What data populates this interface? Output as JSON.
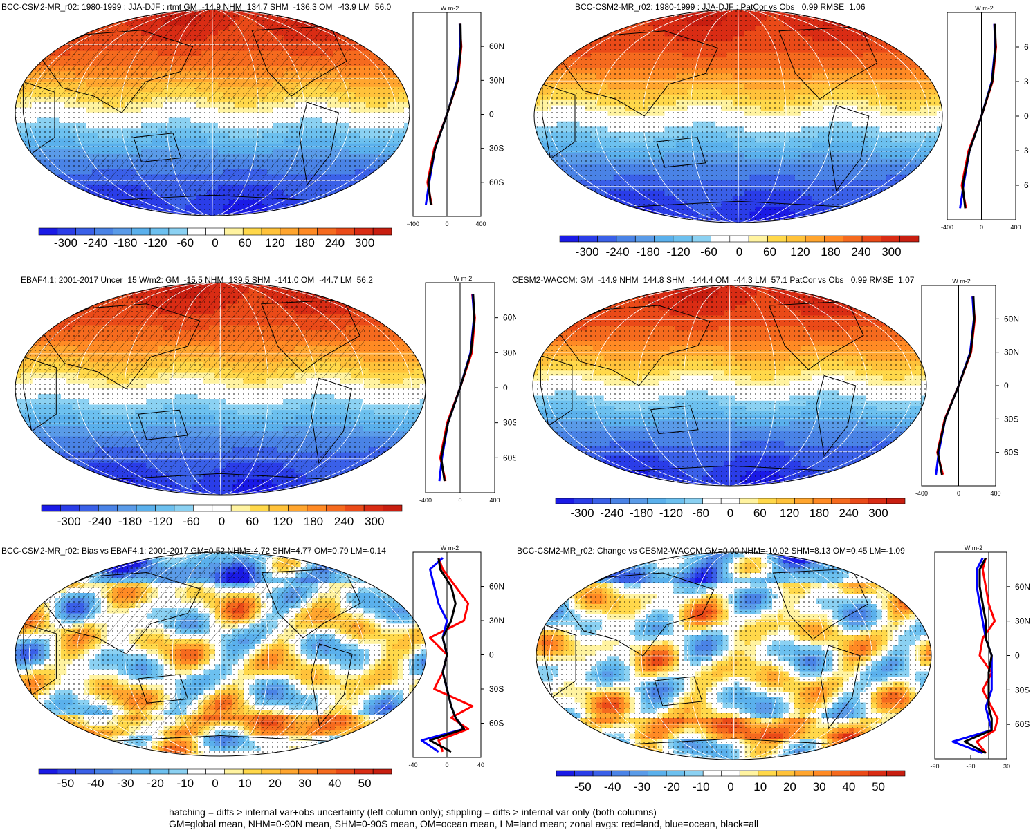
{
  "figure": {
    "footer_line1": "hatching = diffs > internal var+obs uncertainty (left column only); stippling = diffs > internal var only (both columns)",
    "footer_line2": "GM=global mean, NHM=0-90N mean, SHM=0-90S mean, OM=ocean mean, LM=land mean; zonal avgs: red=land, blue=ocean, black=all"
  },
  "colors": {
    "land_line": "#ff0000",
    "ocean_line": "#0000ff",
    "all_line": "#000000",
    "colormap": [
      "#1a1ae6",
      "#2a3de8",
      "#3a60e8",
      "#4a83e6",
      "#5a9be8",
      "#5ab0ec",
      "#6cc0ef",
      "#8bd1f2",
      "#ffffff",
      "#ffffff",
      "#fff3a0",
      "#ffd84a",
      "#ffc23a",
      "#ffa52e",
      "#ff8a24",
      "#f56a1e",
      "#ea4a18",
      "#d92c14",
      "#c81e10"
    ]
  },
  "chart_data": [
    {
      "type": "heatmap",
      "title": "BCC-CSM2-MR_r02: 1980-1999 : JJA-DJF : rtmt GM=-14.9 NHM=134.7 SHM=-136.3 OM=-43.9 LM=56.0",
      "colorbar_labels": [
        "-300",
        "-240",
        "-180",
        "-120",
        "-60",
        "0",
        "60",
        "120",
        "180",
        "240",
        "300"
      ],
      "units": "W m-2",
      "zonal_x_ticks": [
        "-400",
        "0",
        "400"
      ],
      "zonal_lat_ticks": [
        "60N",
        "30N",
        "0",
        "30S",
        "60S"
      ],
      "zonal_xlim": [
        -400,
        400
      ],
      "series": [
        {
          "color": "red",
          "lat": [
            80,
            60,
            30,
            0,
            -30,
            -60,
            -80
          ],
          "values": [
            150,
            170,
            130,
            0,
            -150,
            -230,
            -180
          ]
        },
        {
          "color": "blue",
          "lat": [
            80,
            60,
            30,
            0,
            -30,
            -60,
            -80
          ],
          "values": [
            150,
            160,
            120,
            0,
            -140,
            -210,
            -250
          ]
        },
        {
          "color": "black",
          "lat": [
            80,
            60,
            30,
            0,
            -30,
            -60,
            -80
          ],
          "values": [
            160,
            165,
            125,
            0,
            -140,
            -220,
            -190
          ]
        }
      ]
    },
    {
      "type": "heatmap",
      "title": "BCC-CSM2-MR_r02: 1980-1999 : JJA-DJF : PatCor vs Obs =0.99 RMSE=1.06",
      "colorbar_labels": [
        "-300",
        "-240",
        "-180",
        "-120",
        "-60",
        "0",
        "60",
        "120",
        "180",
        "240",
        "300"
      ],
      "units": "W m-2",
      "zonal_x_ticks": [
        "-400",
        "0",
        "400"
      ],
      "zonal_lat_ticks": [
        "6",
        "3",
        "0",
        "3",
        "6"
      ],
      "zonal_xlim": [
        -400,
        400
      ],
      "series": [
        {
          "color": "red",
          "lat": [
            80,
            60,
            30,
            0,
            -30,
            -60,
            -80
          ],
          "values": [
            150,
            170,
            130,
            0,
            -150,
            -230,
            -180
          ]
        },
        {
          "color": "blue",
          "lat": [
            80,
            60,
            30,
            0,
            -30,
            -60,
            -80
          ],
          "values": [
            150,
            160,
            120,
            0,
            -140,
            -210,
            -250
          ]
        },
        {
          "color": "black",
          "lat": [
            80,
            60,
            30,
            0,
            -30,
            -60,
            -80
          ],
          "values": [
            160,
            165,
            125,
            0,
            -140,
            -220,
            -190
          ]
        }
      ]
    },
    {
      "type": "heatmap",
      "title": "EBAF4.1: 2001-2017 Uncer=15 W/m2: GM=-15.5 NHM=139.5 SHM=-141.0 OM=-44.7 LM=56.2",
      "colorbar_labels": [
        "-300",
        "-240",
        "-180",
        "-120",
        "-60",
        "0",
        "60",
        "120",
        "180",
        "240",
        "300"
      ],
      "units": "W m-2",
      "zonal_x_ticks": [
        "-400",
        "0",
        "400"
      ],
      "zonal_lat_ticks": [
        "60N",
        "30N",
        "0",
        "30S",
        "60S"
      ],
      "zonal_xlim": [
        -400,
        400
      ],
      "series": [
        {
          "color": "red",
          "lat": [
            80,
            60,
            30,
            0,
            -30,
            -60,
            -80
          ],
          "values": [
            140,
            170,
            135,
            0,
            -150,
            -230,
            -170
          ]
        },
        {
          "color": "blue",
          "lat": [
            80,
            60,
            30,
            0,
            -30,
            -60,
            -80
          ],
          "values": [
            145,
            160,
            120,
            0,
            -140,
            -210,
            -240
          ]
        },
        {
          "color": "black",
          "lat": [
            80,
            60,
            30,
            0,
            -30,
            -60,
            -80
          ],
          "values": [
            150,
            165,
            125,
            0,
            -140,
            -220,
            -180
          ]
        }
      ]
    },
    {
      "type": "heatmap",
      "title": "CESM2-WACCM: GM=-14.9 NHM=144.8 SHM=-144.4 OM=-44.3 LM=57.1 PatCor vs Obs =0.99 RMSE=1.07",
      "colorbar_labels": [
        "-300",
        "-240",
        "-180",
        "-120",
        "-60",
        "0",
        "60",
        "120",
        "180",
        "240",
        "300"
      ],
      "units": "W m-2",
      "zonal_x_ticks": [
        "-400",
        "0",
        "400"
      ],
      "zonal_lat_ticks": [
        "60N",
        "30N",
        "0",
        "30S",
        "60S"
      ],
      "zonal_xlim": [
        -400,
        400
      ],
      "series": [
        {
          "color": "red",
          "lat": [
            80,
            60,
            30,
            0,
            -30,
            -60,
            -80
          ],
          "values": [
            150,
            175,
            135,
            0,
            -150,
            -230,
            -170
          ]
        },
        {
          "color": "blue",
          "lat": [
            80,
            60,
            30,
            0,
            -30,
            -60,
            -80
          ],
          "values": [
            150,
            165,
            125,
            0,
            -145,
            -215,
            -245
          ]
        },
        {
          "color": "black",
          "lat": [
            80,
            60,
            30,
            0,
            -30,
            -60,
            -80
          ],
          "values": [
            160,
            170,
            130,
            0,
            -145,
            -225,
            -180
          ]
        }
      ]
    },
    {
      "type": "heatmap",
      "title": "BCC-CSM2-MR_r02: Bias vs EBAF4.1: 2001-2017 GM=0.52 NHM=-4.72 SHM=4.77 OM=0.79 LM=-0.14",
      "colorbar_labels": [
        "-50",
        "-40",
        "-30",
        "-20",
        "-10",
        "0",
        "10",
        "20",
        "30",
        "40",
        "50"
      ],
      "units": "W m-2",
      "zonal_x_ticks": [
        "-40",
        "0",
        "40"
      ],
      "zonal_lat_ticks": [
        "60N",
        "30N",
        "0",
        "30S",
        "60S"
      ],
      "zonal_xlim": [
        -40,
        40
      ],
      "series": [
        {
          "color": "red",
          "lat": [
            85,
            75,
            60,
            45,
            30,
            15,
            0,
            -15,
            -30,
            -45,
            -55,
            -65,
            -75,
            -85
          ],
          "values": [
            -10,
            -5,
            10,
            25,
            20,
            -20,
            0,
            -5,
            -15,
            30,
            5,
            25,
            -10,
            -5
          ]
        },
        {
          "color": "blue",
          "lat": [
            85,
            75,
            60,
            45,
            30,
            15,
            0,
            -15,
            -30,
            -45,
            -55,
            -65,
            -75,
            -85
          ],
          "values": [
            -5,
            -20,
            -15,
            -10,
            0,
            -5,
            0,
            -5,
            0,
            5,
            10,
            20,
            -30,
            -10
          ]
        },
        {
          "color": "black",
          "lat": [
            85,
            75,
            60,
            45,
            30,
            15,
            0,
            -15,
            -30,
            -45,
            -55,
            -65,
            -75,
            -85
          ],
          "values": [
            -10,
            -8,
            5,
            10,
            5,
            -5,
            0,
            -5,
            0,
            5,
            10,
            20,
            -20,
            5
          ]
        }
      ]
    },
    {
      "type": "heatmap",
      "title": "BCC-CSM2-MR_r02: Change vs CESM2-WACCM GM=0.00 NHM=-10.02 SHM=8.13 OM=0.45 LM=-1.09",
      "colorbar_labels": [
        "-50",
        "-40",
        "-30",
        "-20",
        "-10",
        "0",
        "10",
        "20",
        "30",
        "40",
        "50"
      ],
      "units": "W m-2",
      "zonal_x_ticks": [
        "-90",
        "-30",
        "30"
      ],
      "zonal_lat_ticks": [
        "60N",
        "30N",
        "0",
        "30S",
        "60S"
      ],
      "zonal_xlim": [
        -90,
        30
      ],
      "series": [
        {
          "color": "red",
          "lat": [
            85,
            75,
            60,
            45,
            30,
            15,
            0,
            -15,
            -30,
            -45,
            -55,
            -65,
            -75,
            -85
          ],
          "values": [
            -5,
            -10,
            -5,
            0,
            10,
            -10,
            -15,
            5,
            -10,
            5,
            15,
            10,
            -20,
            -5
          ]
        },
        {
          "color": "blue",
          "lat": [
            85,
            75,
            60,
            45,
            30,
            15,
            0,
            -15,
            -30,
            -45,
            -55,
            -65,
            -75,
            -85
          ],
          "values": [
            -10,
            -20,
            -20,
            -15,
            -10,
            -5,
            5,
            5,
            5,
            -5,
            0,
            5,
            -60,
            -10
          ]
        },
        {
          "color": "black",
          "lat": [
            85,
            75,
            60,
            45,
            30,
            15,
            0,
            -15,
            -30,
            -45,
            -55,
            -65,
            -75,
            -85
          ],
          "values": [
            -5,
            -15,
            -15,
            -10,
            -5,
            -5,
            5,
            0,
            0,
            0,
            5,
            5,
            -40,
            -5
          ]
        }
      ]
    }
  ]
}
